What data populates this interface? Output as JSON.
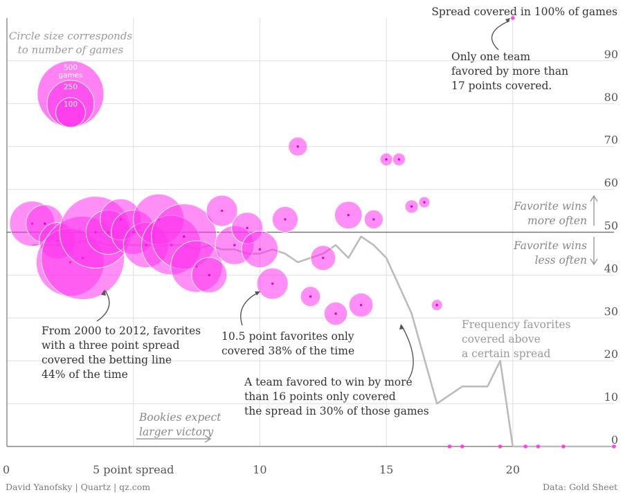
{
  "chart_data": {
    "type": "scatter",
    "x_ticks": [
      "0",
      "5 point spread",
      "10",
      "15",
      "20"
    ],
    "y_ticks": [
      "0",
      "10",
      "20",
      "30",
      "40",
      "50",
      "60",
      "70",
      "80",
      "90"
    ],
    "xlim": [
      0,
      24
    ],
    "ylim": [
      0,
      100
    ],
    "grid": true,
    "bubble_color": "#ff33ee",
    "line_color": "#bbbbbb",
    "legend": {
      "title_lines": [
        "Circle size corresponds",
        "to number of games"
      ],
      "sizes": [
        {
          "label_lines": [
            "500",
            "games"
          ],
          "value": 500
        },
        {
          "label_lines": [
            "250"
          ],
          "value": 250
        },
        {
          "label_lines": [
            "100"
          ],
          "value": 100
        }
      ]
    },
    "bubbles": [
      {
        "x": 1,
        "y": 52,
        "n": 230
      },
      {
        "x": 1.5,
        "y": 52,
        "n": 160
      },
      {
        "x": 2,
        "y": 48,
        "n": 150
      },
      {
        "x": 2.5,
        "y": 43,
        "n": 520
      },
      {
        "x": 3,
        "y": 44,
        "n": 780
      },
      {
        "x": 3.5,
        "y": 50,
        "n": 580
      },
      {
        "x": 4,
        "y": 50,
        "n": 220
      },
      {
        "x": 4.5,
        "y": 53,
        "n": 190
      },
      {
        "x": 5,
        "y": 50,
        "n": 220
      },
      {
        "x": 5.5,
        "y": 47,
        "n": 230
      },
      {
        "x": 6,
        "y": 53,
        "n": 290
      },
      {
        "x": 6.5,
        "y": 47,
        "n": 400
      },
      {
        "x": 7,
        "y": 49,
        "n": 480
      },
      {
        "x": 7.5,
        "y": 42,
        "n": 300
      },
      {
        "x": 8,
        "y": 40,
        "n": 140
      },
      {
        "x": 8.5,
        "y": 55,
        "n": 110
      },
      {
        "x": 9,
        "y": 47,
        "n": 170
      },
      {
        "x": 9.5,
        "y": 51,
        "n": 110
      },
      {
        "x": 10,
        "y": 46,
        "n": 150
      },
      {
        "x": 10.5,
        "y": 38,
        "n": 110
      },
      {
        "x": 11,
        "y": 53,
        "n": 75
      },
      {
        "x": 11.5,
        "y": 70,
        "n": 40
      },
      {
        "x": 12,
        "y": 35,
        "n": 45
      },
      {
        "x": 12.5,
        "y": 44,
        "n": 70
      },
      {
        "x": 13,
        "y": 31,
        "n": 60
      },
      {
        "x": 13.5,
        "y": 54,
        "n": 85
      },
      {
        "x": 14,
        "y": 33,
        "n": 65
      },
      {
        "x": 14.5,
        "y": 53,
        "n": 40
      },
      {
        "x": 15,
        "y": 67,
        "n": 18
      },
      {
        "x": 15.5,
        "y": 67,
        "n": 18
      },
      {
        "x": 16,
        "y": 56,
        "n": 20
      },
      {
        "x": 16.5,
        "y": 57,
        "n": 14
      },
      {
        "x": 17,
        "y": 33,
        "n": 14
      },
      {
        "x": 17.5,
        "y": 0,
        "n": 3
      },
      {
        "x": 18,
        "y": 0,
        "n": 3
      },
      {
        "x": 19.5,
        "y": 0,
        "n": 3
      },
      {
        "x": 20,
        "y": 100,
        "n": 3
      },
      {
        "x": 20.5,
        "y": 0,
        "n": 3
      },
      {
        "x": 21,
        "y": 0,
        "n": 3
      },
      {
        "x": 22,
        "y": 0,
        "n": 3
      },
      {
        "x": 24,
        "y": 0,
        "n": 3
      }
    ],
    "frequency_line": [
      {
        "x": 1,
        "y": 47
      },
      {
        "x": 1.5,
        "y": 47
      },
      {
        "x": 2,
        "y": 47
      },
      {
        "x": 2.5,
        "y": 47
      },
      {
        "x": 3,
        "y": 48
      },
      {
        "x": 3.5,
        "y": 48
      },
      {
        "x": 4,
        "y": 47
      },
      {
        "x": 4.5,
        "y": 47
      },
      {
        "x": 5,
        "y": 47
      },
      {
        "x": 5.5,
        "y": 47
      },
      {
        "x": 6,
        "y": 47
      },
      {
        "x": 6.5,
        "y": 47
      },
      {
        "x": 7,
        "y": 47
      },
      {
        "x": 7.5,
        "y": 46
      },
      {
        "x": 8,
        "y": 47
      },
      {
        "x": 8.5,
        "y": 46
      },
      {
        "x": 9,
        "y": 46
      },
      {
        "x": 9.5,
        "y": 45
      },
      {
        "x": 10,
        "y": 45
      },
      {
        "x": 10.5,
        "y": 46
      },
      {
        "x": 11,
        "y": 45
      },
      {
        "x": 11.5,
        "y": 43
      },
      {
        "x": 12,
        "y": 44
      },
      {
        "x": 12.5,
        "y": 45
      },
      {
        "x": 13,
        "y": 47
      },
      {
        "x": 13.5,
        "y": 44
      },
      {
        "x": 14,
        "y": 49
      },
      {
        "x": 14.5,
        "y": 47
      },
      {
        "x": 15,
        "y": 44
      },
      {
        "x": 16,
        "y": 31
      },
      {
        "x": 17,
        "y": 10
      },
      {
        "x": 17.5,
        "y": 12
      },
      {
        "x": 18,
        "y": 14
      },
      {
        "x": 19,
        "y": 14
      },
      {
        "x": 19.5,
        "y": 20
      },
      {
        "x": 20,
        "y": 0
      },
      {
        "x": 24,
        "y": 0
      }
    ],
    "side_labels": {
      "above_lines": [
        "Favorite wins",
        "more often"
      ],
      "below_lines": [
        "Favorite wins",
        "less often"
      ]
    },
    "bookies_lines": [
      "Bookies expect",
      "larger victory"
    ],
    "annotations": {
      "top": "Spread covered in 100% of games",
      "only_one_lines": [
        "Only one team",
        "favored by more than",
        "17 points covered."
      ],
      "three_point_lines": [
        "From 2000 to 2012, favorites",
        "with a three point spread",
        "covered the betting line",
        "44% of the time"
      ],
      "ten_point_lines": [
        "10.5 point favorites only",
        "covered 38% of the time"
      ],
      "sixteen_point_lines": [
        "A team favored to win by more",
        "than 16 points only covered",
        "the spread in 30% of those games"
      ],
      "frequency_lines": [
        "Frequency favorites",
        "covered above",
        "a certain spread"
      ]
    }
  },
  "footer": {
    "credit": "David Yanofsky | Quartz | qz.com",
    "source": "Data: Gold Sheet"
  }
}
